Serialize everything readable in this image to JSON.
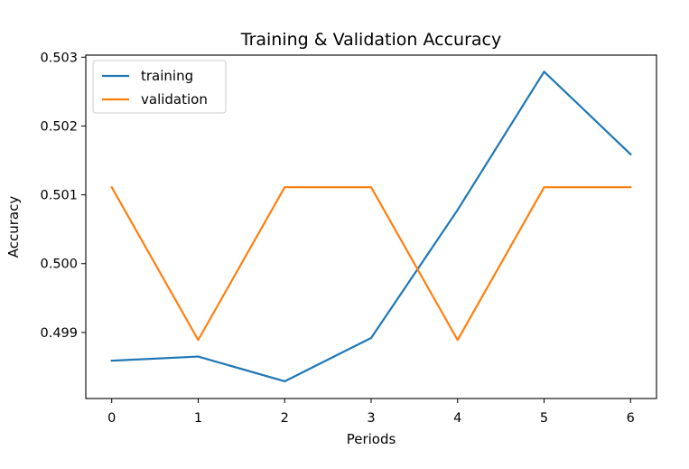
{
  "chart_data": {
    "type": "line",
    "title": "Training & Validation Accuracy",
    "xlabel": "Periods",
    "ylabel": "Accuracy",
    "x": [
      0,
      1,
      2,
      3,
      4,
      5,
      6
    ],
    "xlim": [
      -0.3,
      6.3
    ],
    "ylim": [
      0.49804,
      0.50303
    ],
    "xticks": [
      0,
      1,
      2,
      3,
      4,
      5,
      6
    ],
    "xtick_labels": [
      "0",
      "1",
      "2",
      "3",
      "4",
      "5",
      "6"
    ],
    "yticks": [
      0.499,
      0.5,
      0.501,
      0.502,
      0.503
    ],
    "ytick_labels": [
      "0.499",
      "0.500",
      "0.501",
      "0.502",
      "0.503"
    ],
    "grid": false,
    "legend_position": "top-left",
    "series": [
      {
        "name": "training",
        "color": "#1f77b4",
        "values": [
          0.49859,
          0.49865,
          0.49829,
          0.49892,
          0.50078,
          0.50279,
          0.50159
        ]
      },
      {
        "name": "validation",
        "color": "#ff7f0e",
        "values": [
          0.50111,
          0.49889,
          0.50111,
          0.50111,
          0.49889,
          0.50111,
          0.50111
        ]
      }
    ]
  }
}
